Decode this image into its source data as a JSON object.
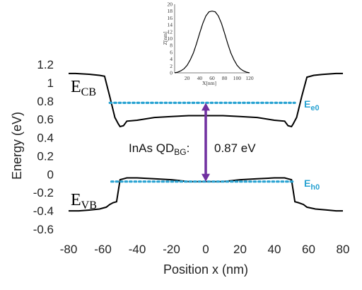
{
  "chart_data": [
    {
      "type": "line",
      "xlabel": "Position x (nm)",
      "ylabel": "Energy (eV)",
      "xlim": [
        -80,
        80
      ],
      "ylim": [
        -0.6,
        1.2
      ],
      "xticks": [
        "-80",
        "-60",
        "-40",
        "-20",
        "0",
        "20",
        "40",
        "60",
        "80"
      ],
      "yticks": [
        "1.2",
        "1",
        "0.8",
        "0.6",
        "0.4",
        "0.2",
        "0",
        "-0.2",
        "-0.4",
        "-0.6"
      ],
      "grid": false,
      "series": [
        {
          "name": "E_CB",
          "color": "#000000",
          "x": [
            -80,
            -76,
            -67,
            -62,
            -59,
            -56,
            -53,
            -51,
            -50,
            -48,
            -46,
            -40,
            -30,
            -20,
            -10,
            0,
            10,
            20,
            30,
            40,
            46,
            48,
            50,
            51,
            53,
            56,
            59,
            63,
            68,
            76,
            80
          ],
          "y": [
            1.1,
            1.1,
            1.09,
            1.08,
            1.07,
            0.85,
            0.62,
            0.55,
            0.52,
            0.53,
            0.58,
            0.59,
            0.62,
            0.63,
            0.64,
            0.64,
            0.64,
            0.63,
            0.62,
            0.59,
            0.58,
            0.53,
            0.52,
            0.55,
            0.62,
            0.85,
            1.06,
            1.08,
            1.09,
            1.1,
            1.1
          ]
        },
        {
          "name": "E_VB",
          "color": "#000000",
          "x": [
            -80,
            -74,
            -67,
            -62,
            -58,
            -56,
            -54,
            -52,
            -50,
            -48,
            -46,
            -40,
            -30,
            -20,
            -10,
            0,
            10,
            20,
            30,
            40,
            46,
            48,
            50,
            52,
            54,
            57,
            59,
            64,
            70,
            76,
            80
          ],
          "y": [
            -0.4,
            -0.4,
            -0.39,
            -0.38,
            -0.36,
            -0.33,
            -0.31,
            -0.3,
            -0.06,
            -0.05,
            -0.04,
            -0.04,
            -0.05,
            -0.06,
            -0.08,
            -0.08,
            -0.08,
            -0.06,
            -0.05,
            -0.04,
            -0.04,
            -0.05,
            -0.06,
            -0.3,
            -0.31,
            -0.33,
            -0.36,
            -0.38,
            -0.39,
            -0.4,
            -0.4
          ]
        }
      ],
      "levels": [
        {
          "name": "E_e0",
          "y": 0.78,
          "x_from": -56,
          "x_to": 52,
          "color": "#2aa3d2"
        },
        {
          "name": "E_h0",
          "y": -0.08,
          "x_from": -55,
          "x_to": 52,
          "color": "#2aa3d2"
        }
      ],
      "arrow": {
        "x": 0,
        "y_from": -0.08,
        "y_to": 0.78,
        "color": "#7030a0"
      },
      "labels": {
        "ecb_main": "E",
        "ecb_sub": "CB",
        "evb_main": "E",
        "evb_sub": "VB",
        "ee0_main": "E",
        "ee0_sub": "e0",
        "eh0_main": "E",
        "eh0_sub": "h0",
        "bg_prefix": "InAs QD",
        "bg_sub": "BG",
        "bg_colon": ":",
        "bg_value": "0.87 eV"
      }
    },
    {
      "type": "line",
      "xlabel": "X[nm]",
      "ylabel": "Z[nm]",
      "xlim": [
        0,
        120
      ],
      "ylim": [
        0,
        20
      ],
      "xticks": [
        "20",
        "40",
        "60",
        "80",
        "100",
        "120"
      ],
      "yticks": [
        "0",
        "2",
        "4",
        "6",
        "8",
        "10",
        "12",
        "14",
        "16",
        "18",
        "20"
      ],
      "series": [
        {
          "color": "#000000",
          "x": [
            0,
            5,
            10,
            15,
            20,
            25,
            30,
            35,
            40,
            45,
            50,
            55,
            60,
            65,
            70,
            75,
            80,
            85,
            90,
            95,
            100,
            105,
            110,
            115,
            120
          ],
          "y": [
            0,
            0.2,
            0.6,
            1.2,
            2.2,
            3.8,
            5.8,
            8.5,
            11.5,
            14.4,
            16.6,
            17.8,
            18.0,
            17.8,
            16.6,
            14.4,
            11.5,
            8.5,
            5.8,
            3.8,
            2.2,
            1.2,
            0.6,
            0.2,
            0
          ]
        }
      ]
    }
  ]
}
